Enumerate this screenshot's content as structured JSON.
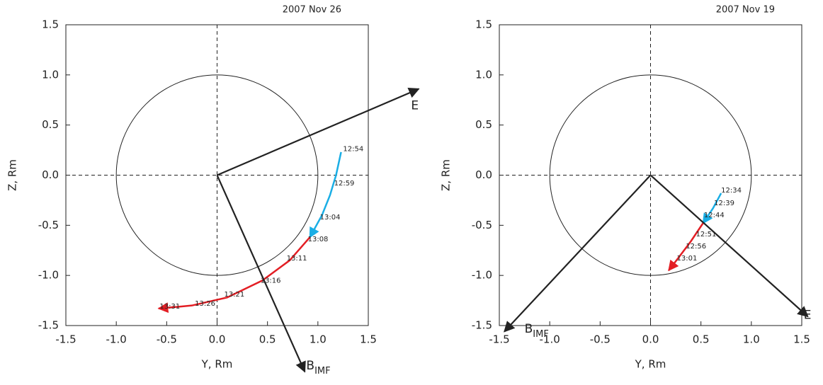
{
  "chart_data": [
    {
      "type": "line",
      "title": "2007 Nov 26",
      "xlabel": "Y, Rm",
      "ylabel": "Z, Rm",
      "xlim": [
        -1.5,
        1.5
      ],
      "ylim": [
        -1.5,
        1.5
      ],
      "xticks": [
        -1.5,
        {
          "value": -1,
          "label": "-1.0"
        },
        -0.5,
        {
          "value": 0,
          "label": "0.0"
        },
        0.5,
        {
          "value": 1,
          "label": "1.0"
        },
        1.5
      ],
      "yticks": [
        -1.5,
        {
          "value": -1,
          "label": "-1.0"
        },
        -0.5,
        {
          "value": 0,
          "label": "0.0"
        },
        0.5,
        {
          "value": 1,
          "label": "1.0"
        },
        1.5
      ],
      "zero_lines": true,
      "circle_radius": 1,
      "series": [
        {
          "color": "#1aaee5",
          "x": [
            1.23,
            1.18,
            1.12,
            1.04,
            0.92
          ],
          "y": [
            0.23,
            0.0,
            -0.2,
            -0.4,
            -0.62
          ]
        },
        {
          "color": "#e31e24",
          "x": [
            0.92,
            0.72,
            0.45,
            0.1,
            -0.25,
            -0.58
          ],
          "y": [
            -0.62,
            -0.85,
            -1.05,
            -1.22,
            -1.3,
            -1.33
          ]
        }
      ],
      "time_labels": [
        {
          "label": "12:54",
          "x": 1.25,
          "y": 0.26
        },
        {
          "label": "12:59",
          "x": 1.16,
          "y": -0.08
        },
        {
          "label": "13:04",
          "x": 1.02,
          "y": -0.42
        },
        {
          "label": "13:08",
          "x": 0.9,
          "y": -0.64
        },
        {
          "label": "13:11",
          "x": 0.69,
          "y": -0.83
        },
        {
          "label": "13:16",
          "x": 0.43,
          "y": -1.05
        },
        {
          "label": "13:21",
          "x": 0.07,
          "y": -1.19
        },
        {
          "label": "13:26",
          "x": -0.22,
          "y": -1.28
        },
        {
          "label": "13:31",
          "x": -0.57,
          "y": -1.31
        }
      ],
      "vectors": [
        {
          "name": "E",
          "x": 2.0,
          "y": 0.86
        },
        {
          "name": "B",
          "subscript": "IMF",
          "x": 0.87,
          "y": -1.96
        }
      ]
    },
    {
      "type": "line",
      "title": "2007 Nov 19",
      "xlabel": "Y, Rm",
      "ylabel": "Z, Rm",
      "xlim": [
        -1.5,
        1.5
      ],
      "ylim": [
        -1.5,
        1.5
      ],
      "xticks": [
        -1.5,
        {
          "value": -1,
          "label": "-1.0"
        },
        -0.5,
        {
          "value": 0,
          "label": "0.0"
        },
        0.5,
        {
          "value": 1,
          "label": "1.0"
        },
        1.5
      ],
      "yticks": [
        -1.5,
        {
          "value": -1,
          "label": "-1.0"
        },
        -0.5,
        {
          "value": 0,
          "label": "0.0"
        },
        0.5,
        {
          "value": 1,
          "label": "1.0"
        },
        1.5
      ],
      "zero_lines": true,
      "circle_radius": 1,
      "series": [
        {
          "color": "#1aaee5",
          "x": [
            0.7,
            0.62,
            0.52
          ],
          "y": [
            -0.18,
            -0.33,
            -0.48
          ]
        },
        {
          "color": "#e31e24",
          "x": [
            0.52,
            0.4,
            0.28,
            0.18
          ],
          "y": [
            -0.48,
            -0.66,
            -0.82,
            -0.95
          ]
        }
      ],
      "time_labels": [
        {
          "label": "12:34",
          "x": 0.7,
          "y": -0.15
        },
        {
          "label": "12:39",
          "x": 0.63,
          "y": -0.28
        },
        {
          "label": "12:44",
          "x": 0.53,
          "y": -0.4
        },
        {
          "label": "12:51",
          "x": 0.45,
          "y": -0.59
        },
        {
          "label": "12:56",
          "x": 0.35,
          "y": -0.71
        },
        {
          "label": "13:01",
          "x": 0.26,
          "y": -0.83
        }
      ],
      "vectors": [
        {
          "name": "E",
          "x": 1.56,
          "y": -1.41
        },
        {
          "name": "B",
          "subscript": "IMF",
          "x": -1.45,
          "y": -1.56
        }
      ]
    }
  ]
}
